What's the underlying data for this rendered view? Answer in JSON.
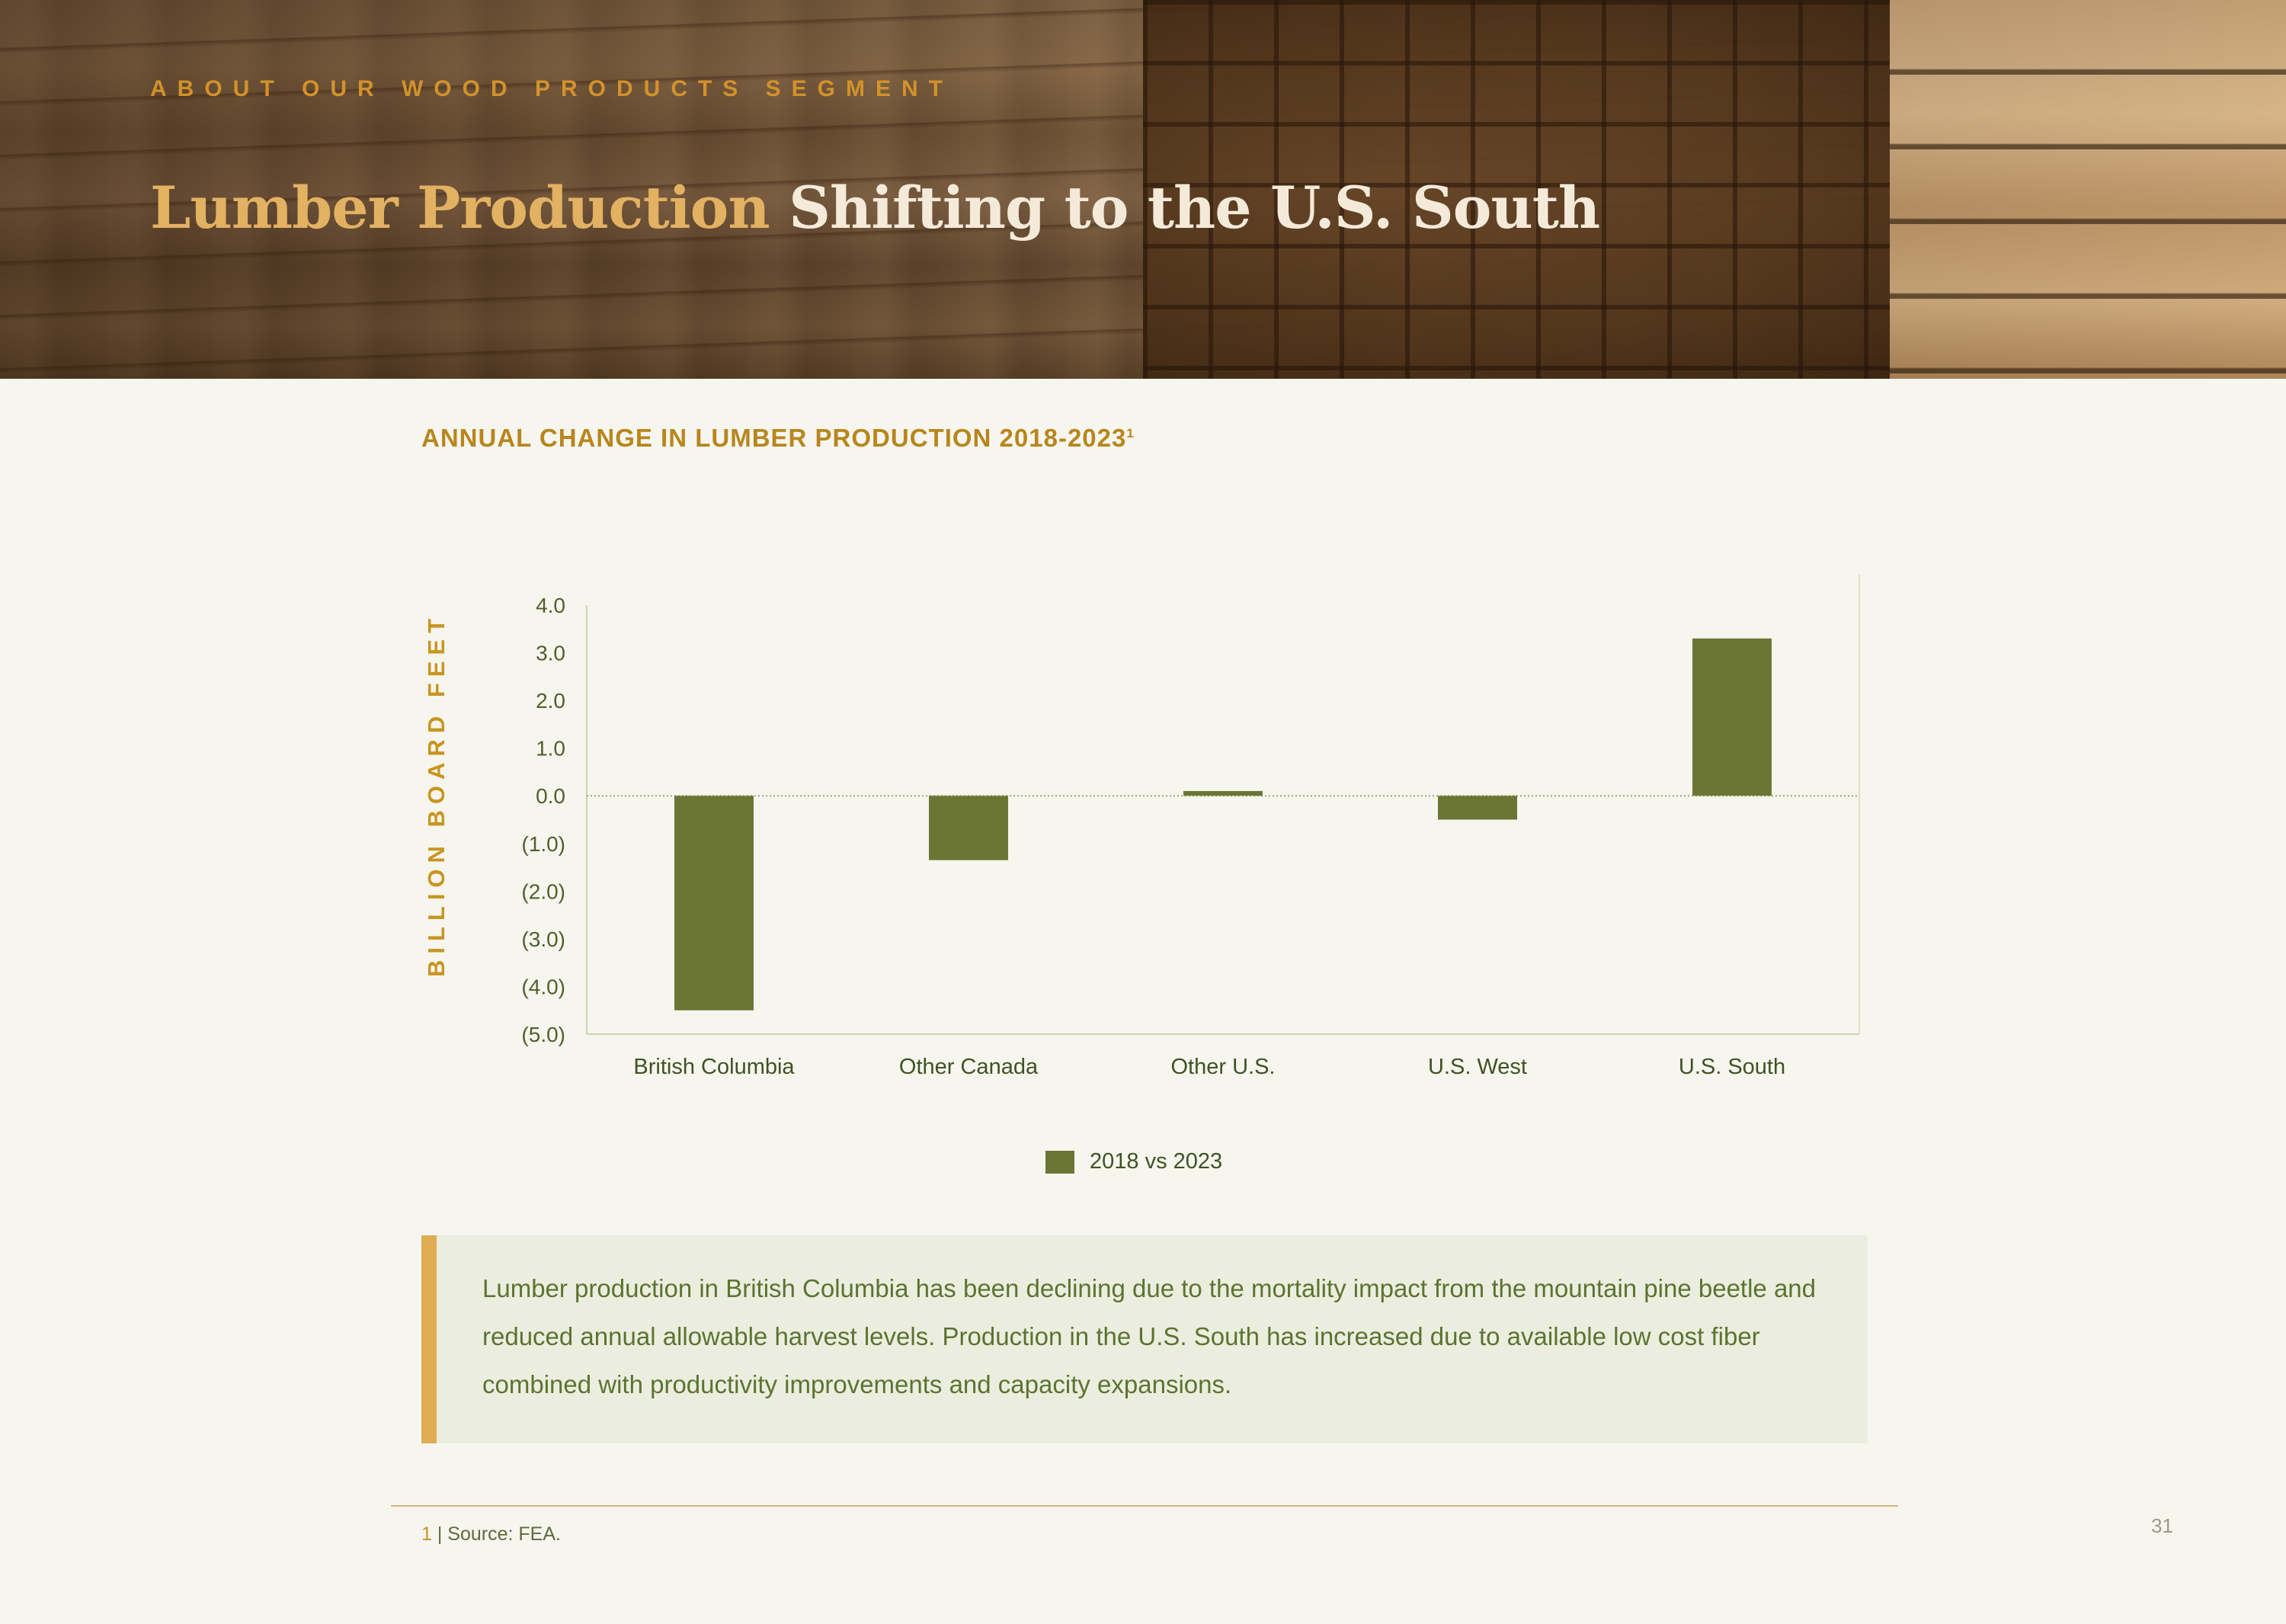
{
  "header": {
    "kicker": "ABOUT OUR WOOD PRODUCTS SEGMENT",
    "title_highlight": "Lumber Production",
    "title_rest": "Shifting to the U.S. South"
  },
  "chart_data": {
    "type": "bar",
    "title": "ANNUAL CHANGE IN LUMBER PRODUCTION 2018-2023",
    "title_superscript": "1",
    "ylabel": "BILLION BOARD FEET",
    "xlabel": "",
    "categories": [
      "British Columbia",
      "Other Canada",
      "Other U.S.",
      "U.S. West",
      "U.S. South"
    ],
    "series": [
      {
        "name": "2018 vs 2023",
        "values": [
          -4.5,
          -1.35,
          0.1,
          -0.5,
          3.3
        ],
        "color": "#6b7635"
      }
    ],
    "ylim": [
      -5.0,
      4.0
    ],
    "yticks": [
      4,
      3,
      2,
      1,
      0,
      -1,
      -2,
      -3,
      -4,
      -5
    ],
    "ytick_labels": [
      "4.0",
      "3.0",
      "2.0",
      "1.0",
      "0.0",
      "(1.0)",
      "(2.0)",
      "(3.0)",
      "(4.0)",
      "(5.0)"
    ],
    "grid": false,
    "legend": "bottom-center"
  },
  "legend": {
    "label": "2018 vs 2023"
  },
  "callout": {
    "text": "Lumber production in British Columbia has been declining due to the mortality impact from the mountain pine beetle and reduced annual allowable harvest levels. Production in the U.S. South has increased due to available low cost fiber combined with productivity improvements and capacity expansions."
  },
  "footer": {
    "footnote_number": "1",
    "footnote_text": " | Source: FEA.",
    "page_number": "31"
  }
}
